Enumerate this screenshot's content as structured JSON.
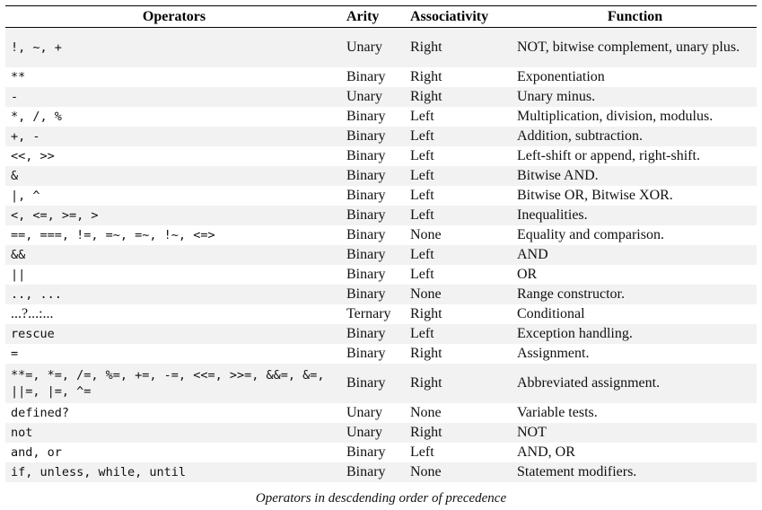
{
  "table": {
    "headers": [
      "Operators",
      "Arity",
      "Associativity",
      "Function"
    ],
    "rows": [
      {
        "op": "!, ~, +",
        "arity": "Unary",
        "assoc": "Right",
        "func": "NOT, bitwise complement, unary plus."
      },
      {
        "op": "**",
        "arity": "Binary",
        "assoc": "Right",
        "func": "Exponentiation"
      },
      {
        "op": "-",
        "arity": "Unary",
        "assoc": "Right",
        "func": "Unary minus."
      },
      {
        "op": "*, /, %",
        "arity": "Binary",
        "assoc": "Left",
        "func": "Multiplication, division, modulus."
      },
      {
        "op": "+, -",
        "arity": "Binary",
        "assoc": "Left",
        "func": "Addition, subtraction."
      },
      {
        "op": "<<, >>",
        "arity": "Binary",
        "assoc": "Left",
        "func": "Left-shift or append, right-shift."
      },
      {
        "op": "&",
        "arity": "Binary",
        "assoc": "Left",
        "func": "Bitwise AND."
      },
      {
        "op": "|, ^",
        "arity": "Binary",
        "assoc": "Left",
        "func": "Bitwise OR, Bitwise XOR."
      },
      {
        "op": "<, <=, >=, >",
        "arity": "Binary",
        "assoc": "Left",
        "func": "Inequalities."
      },
      {
        "op": "==, ===, !=, =~, =~, !~, <=>",
        "arity": "Binary",
        "assoc": "None",
        "func": "Equality and comparison."
      },
      {
        "op": "&&",
        "arity": "Binary",
        "assoc": "Left",
        "func": "AND"
      },
      {
        "op": "||",
        "arity": "Binary",
        "assoc": "Left",
        "func": "OR"
      },
      {
        "op": "..,  ...",
        "arity": "Binary",
        "assoc": "None",
        "func": "Range constructor."
      },
      {
        "op": "...?...:...",
        "arity": "Ternary",
        "assoc": "Right",
        "func": "Conditional"
      },
      {
        "op": "rescue",
        "arity": "Binary",
        "assoc": "Left",
        "func": "Exception handling."
      },
      {
        "op": "=",
        "arity": "Binary",
        "assoc": "Right",
        "func": "Assignment."
      },
      {
        "op": "**=, *=, /=, %=, +=, -=, <<=, >>=, &&=, &=, ||=, |=, ^=",
        "arity": "Binary",
        "assoc": "Right",
        "func": "Abbreviated assignment."
      },
      {
        "op": "defined?",
        "arity": "Unary",
        "assoc": "None",
        "func": "Variable tests."
      },
      {
        "op": "not",
        "arity": "Unary",
        "assoc": "Right",
        "func": "NOT"
      },
      {
        "op": "and, or",
        "arity": "Binary",
        "assoc": "Left",
        "func": "AND, OR"
      },
      {
        "op": "if, unless, while, until",
        "arity": "Binary",
        "assoc": "None",
        "func": "Statement modifiers."
      }
    ]
  },
  "caption": "Operators in descdending order of precedence"
}
